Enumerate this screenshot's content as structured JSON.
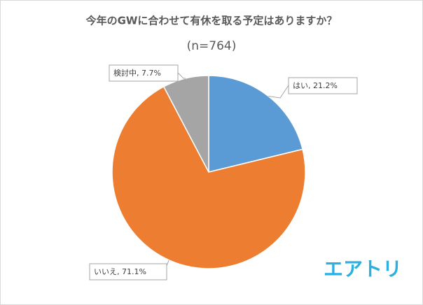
{
  "chart_data": {
    "type": "pie",
    "title": "今年のGWに合わせて有休を取る予定はありますか？",
    "subtitle": "(n=764)",
    "values": [
      21.2,
      71.1,
      7.7
    ],
    "value_labels": [
      "はい, 21.2%",
      "いいえ, 71.1%",
      "検討中, 7.7%"
    ],
    "colors": [
      "#5b9bd5",
      "#ed7d31",
      "#a5a5a5"
    ],
    "logo": "エアトリ"
  }
}
